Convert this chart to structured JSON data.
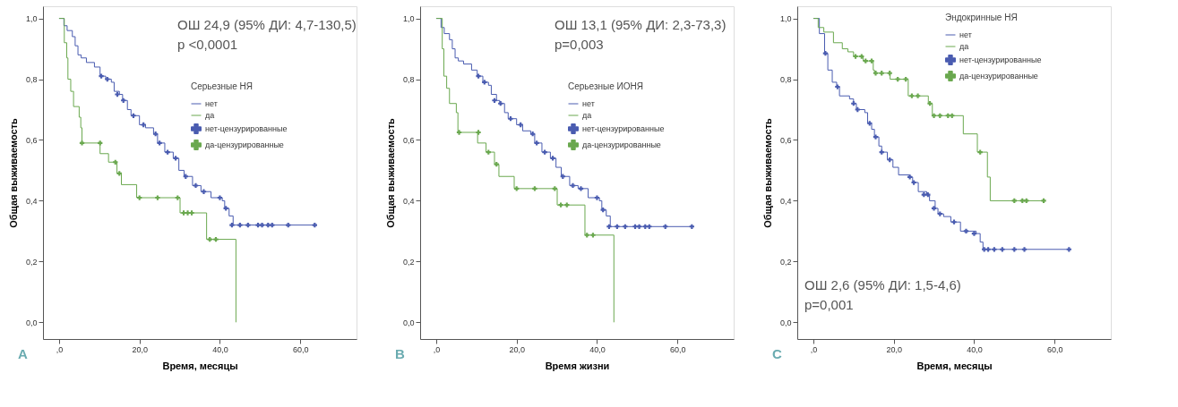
{
  "chart_data": [
    {
      "type": "step",
      "xlabel": "Время, месяцы",
      "ylabel": "Общая выживаемость",
      "legend_title": "Серьезные НЯ",
      "legend": "top right",
      "grid": false,
      "xlim": [
        -4,
        74
      ],
      "ylim": [
        -0.055,
        1.04
      ],
      "xticks": [
        {
          "value": 0,
          "label": ",0"
        },
        {
          "value": 20,
          "label": "20,0"
        },
        {
          "value": 40,
          "label": "40,0"
        },
        {
          "value": 60,
          "label": "60,0"
        }
      ],
      "yticks": [
        {
          "value": 0,
          "label": "0,0"
        },
        {
          "value": 0.2,
          "label": "0,2"
        },
        {
          "value": 0.4,
          "label": "0,4"
        },
        {
          "value": 0.6,
          "label": "0,6"
        },
        {
          "value": 0.8,
          "label": "0,8"
        },
        {
          "value": 1.0,
          "label": "1,0"
        }
      ],
      "annotations": [
        "ОШ 24,9 (95% ДИ: 4,7-130,5)",
        "p <0,0001",
        "A"
      ],
      "series": [
        {
          "name": "нет",
          "color": "#4a5cb0",
          "x": [
            0,
            1.2,
            2,
            3.3,
            4,
            4.7,
            5.5,
            6.8,
            8.8,
            10.2,
            11.6,
            13,
            13.7,
            15,
            15.8,
            17,
            17.9,
            20,
            21.5,
            23.5,
            24.5,
            26.3,
            28.4,
            29.8,
            31.1,
            33.2,
            35.3,
            37.8,
            40.6,
            41.2,
            42.3,
            43.3,
            63.6
          ],
          "values": [
            1.0,
            0.976,
            0.96,
            0.94,
            0.91,
            0.88,
            0.87,
            0.855,
            0.84,
            0.81,
            0.8,
            0.79,
            0.76,
            0.75,
            0.73,
            0.7,
            0.68,
            0.65,
            0.64,
            0.62,
            0.59,
            0.56,
            0.54,
            0.5,
            0.48,
            0.45,
            0.43,
            0.41,
            0.4,
            0.375,
            0.35,
            0.32,
            0.32
          ]
        },
        {
          "name": "да",
          "color": "#6aa84f",
          "x": [
            0,
            1.3,
            1.9,
            2.2,
            2.9,
            3.6,
            5.0,
            5.4,
            5.7,
            10.2,
            12.3,
            14.4,
            15.5,
            19.3,
            30.1,
            36.7,
            44
          ],
          "values": [
            1.0,
            0.92,
            0.87,
            0.8,
            0.76,
            0.71,
            0.675,
            0.64,
            0.59,
            0.555,
            0.527,
            0.49,
            0.453,
            0.41,
            0.36,
            0.273,
            0
          ]
        },
        {
          "name": "нет-цензурированные",
          "type": "scatter",
          "marker": "cross",
          "color": "#4a5cb0",
          "x": [
            10.5,
            12,
            14.5,
            16,
            18.5,
            21,
            24,
            25,
            27,
            29,
            31.5,
            34,
            36,
            40,
            41.5,
            43,
            45,
            47,
            49.5,
            50.5,
            52,
            53,
            57,
            63.6
          ],
          "values": [
            0.81,
            0.8,
            0.75,
            0.73,
            0.68,
            0.65,
            0.62,
            0.59,
            0.56,
            0.54,
            0.48,
            0.45,
            0.43,
            0.41,
            0.375,
            0.32,
            0.32,
            0.32,
            0.32,
            0.32,
            0.32,
            0.32,
            0.32,
            0.32
          ]
        },
        {
          "name": "да-цензурированные",
          "type": "scatter",
          "marker": "cross",
          "color": "#6aa84f",
          "x": [
            5.7,
            10.2,
            14,
            15,
            20,
            24.5,
            29.5,
            31,
            32,
            33,
            37.5,
            39
          ],
          "values": [
            0.59,
            0.59,
            0.527,
            0.49,
            0.41,
            0.41,
            0.41,
            0.36,
            0.36,
            0.36,
            0.273,
            0.273
          ]
        }
      ]
    },
    {
      "type": "step",
      "xlabel": "Время жизни",
      "ylabel": "Общая выживаемость",
      "legend_title": "Серьезные ИОНЯ",
      "legend": "top right",
      "grid": false,
      "xlim": [
        -4,
        74
      ],
      "ylim": [
        -0.055,
        1.04
      ],
      "xticks": [
        {
          "value": 0,
          "label": ",0"
        },
        {
          "value": 20,
          "label": "20,0"
        },
        {
          "value": 40,
          "label": "40,0"
        },
        {
          "value": 60,
          "label": "60,0"
        }
      ],
      "yticks": [
        {
          "value": 0,
          "label": "0,0"
        },
        {
          "value": 0.2,
          "label": "0,2"
        },
        {
          "value": 0.4,
          "label": "0,4"
        },
        {
          "value": 0.6,
          "label": "0,6"
        },
        {
          "value": 0.8,
          "label": "0,8"
        },
        {
          "value": 1.0,
          "label": "1,0"
        }
      ],
      "annotations": [
        "ОШ 13,1 (95% ДИ: 2,3-73,3)",
        "p=0,003",
        "B"
      ],
      "series": [
        {
          "name": "нет",
          "color": "#4a5cb0",
          "x": [
            0,
            1.2,
            2,
            3.3,
            4,
            4.7,
            5.5,
            6.8,
            8.8,
            10.2,
            11.6,
            13,
            13.7,
            15,
            15.8,
            17,
            17.9,
            20,
            21.5,
            23.5,
            24.5,
            26.3,
            28.4,
            29.8,
            31.1,
            33.2,
            35.3,
            37.8,
            40.6,
            41.2,
            42.3,
            43.3,
            63.6
          ],
          "values": [
            1.0,
            0.97,
            0.95,
            0.93,
            0.9,
            0.87,
            0.86,
            0.85,
            0.83,
            0.81,
            0.79,
            0.78,
            0.75,
            0.73,
            0.72,
            0.69,
            0.67,
            0.65,
            0.63,
            0.62,
            0.59,
            0.56,
            0.54,
            0.51,
            0.48,
            0.45,
            0.44,
            0.41,
            0.4,
            0.37,
            0.35,
            0.315,
            0.315
          ]
        },
        {
          "name": "да",
          "color": "#6aa84f",
          "x": [
            0,
            1.5,
            1.9,
            2.6,
            3.3,
            5.0,
            5.4,
            10.3,
            12.4,
            14.5,
            15.6,
            19.4,
            30.1,
            37,
            44.2
          ],
          "values": [
            1.0,
            0.9,
            0.81,
            0.77,
            0.72,
            0.69,
            0.625,
            0.59,
            0.56,
            0.52,
            0.48,
            0.44,
            0.386,
            0.287,
            0
          ]
        },
        {
          "name": "нет-цензурированные",
          "type": "scatter",
          "marker": "cross",
          "color": "#4a5cb0",
          "x": [
            10.5,
            12,
            14.5,
            16,
            18.5,
            21,
            24,
            25,
            27,
            29,
            31.5,
            34,
            36,
            40,
            41.5,
            43,
            45,
            47,
            49.5,
            50.5,
            52,
            53,
            57,
            63.6
          ],
          "values": [
            0.81,
            0.79,
            0.73,
            0.72,
            0.67,
            0.65,
            0.62,
            0.59,
            0.56,
            0.54,
            0.48,
            0.45,
            0.44,
            0.41,
            0.37,
            0.315,
            0.315,
            0.315,
            0.315,
            0.315,
            0.315,
            0.315,
            0.315,
            0.315
          ]
        },
        {
          "name": "да-цензурированные",
          "type": "scatter",
          "marker": "cross",
          "color": "#6aa84f",
          "x": [
            5.7,
            10.5,
            13,
            15,
            20,
            24.5,
            29.5,
            31,
            32.5,
            37.5,
            39
          ],
          "values": [
            0.625,
            0.625,
            0.56,
            0.52,
            0.44,
            0.44,
            0.44,
            0.386,
            0.386,
            0.287,
            0.287
          ]
        }
      ]
    },
    {
      "type": "step",
      "xlabel": "Время, месяцы",
      "ylabel": "Общая выживаемость",
      "legend_title": "Эндокринные НЯ",
      "legend": "top right",
      "grid": false,
      "xlim": [
        -4,
        74
      ],
      "ylim": [
        -0.055,
        1.04
      ],
      "xticks": [
        {
          "value": 0,
          "label": ",0"
        },
        {
          "value": 20,
          "label": "20,0"
        },
        {
          "value": 40,
          "label": "40,0"
        },
        {
          "value": 60,
          "label": "60,0"
        }
      ],
      "yticks": [
        {
          "value": 0,
          "label": "0,0"
        },
        {
          "value": 0.2,
          "label": "0,2"
        },
        {
          "value": 0.4,
          "label": "0,4"
        },
        {
          "value": 0.6,
          "label": "0,6"
        },
        {
          "value": 0.8,
          "label": "0,8"
        },
        {
          "value": 1.0,
          "label": "1,0"
        }
      ],
      "annotations": [
        "ОШ 2,6 (95% ДИ: 1,5-4,6)",
        "p=0,001",
        "C"
      ],
      "series": [
        {
          "name": "нет",
          "color": "#4a5cb0",
          "x": [
            0,
            0.5,
            1.5,
            2.8,
            3.6,
            4.7,
            5.8,
            6.5,
            9,
            10,
            10.7,
            12.8,
            13.5,
            14.5,
            15.2,
            16.3,
            17,
            18.4,
            19.8,
            21.2,
            24,
            24.7,
            26.1,
            28.2,
            28.9,
            30.3,
            31,
            32.4,
            34.2,
            36.6,
            40.5,
            41.5,
            42.2,
            63.6
          ],
          "values": [
            1.0,
            1.0,
            0.95,
            0.885,
            0.83,
            0.79,
            0.775,
            0.745,
            0.735,
            0.72,
            0.7,
            0.69,
            0.655,
            0.635,
            0.61,
            0.58,
            0.56,
            0.535,
            0.51,
            0.485,
            0.478,
            0.46,
            0.43,
            0.42,
            0.4,
            0.375,
            0.357,
            0.348,
            0.33,
            0.3,
            0.292,
            0.264,
            0.24,
            0.24
          ]
        },
        {
          "name": "да",
          "color": "#6aa84f",
          "x": [
            0,
            1.2,
            2.6,
            5,
            7.2,
            8.6,
            10,
            12.4,
            14.9,
            15.2,
            19.1,
            23.6,
            28.6,
            29.6,
            37.3,
            40.8,
            43.3,
            44,
            57.3
          ],
          "values": [
            1.0,
            0.97,
            0.955,
            0.92,
            0.9,
            0.89,
            0.875,
            0.86,
            0.83,
            0.82,
            0.8,
            0.745,
            0.72,
            0.68,
            0.62,
            0.56,
            0.478,
            0.4,
            0.4
          ]
        },
        {
          "name": "нет-цензурированные",
          "type": "scatter",
          "marker": "cross",
          "color": "#4a5cb0",
          "x": [
            3,
            6,
            10,
            11,
            14,
            15.5,
            17,
            19,
            24,
            25,
            27.5,
            28.5,
            30,
            31.5,
            35,
            38,
            40,
            42.5,
            43.5,
            45,
            47,
            50,
            52.5,
            63.6
          ],
          "values": [
            0.885,
            0.775,
            0.72,
            0.7,
            0.655,
            0.61,
            0.56,
            0.535,
            0.478,
            0.46,
            0.42,
            0.42,
            0.375,
            0.357,
            0.33,
            0.3,
            0.292,
            0.24,
            0.24,
            0.24,
            0.24,
            0.24,
            0.24,
            0.24
          ]
        },
        {
          "name": "да-цензурированные",
          "type": "scatter",
          "marker": "cross",
          "color": "#6aa84f",
          "x": [
            10.5,
            12,
            13,
            14.5,
            15.5,
            17,
            19,
            21,
            23,
            24.5,
            26,
            29,
            30,
            31.5,
            33.5,
            34.5,
            41.5,
            50,
            52,
            53,
            57.3
          ],
          "values": [
            0.875,
            0.875,
            0.86,
            0.86,
            0.82,
            0.82,
            0.82,
            0.8,
            0.8,
            0.745,
            0.745,
            0.72,
            0.68,
            0.68,
            0.68,
            0.68,
            0.56,
            0.4,
            0.4,
            0.4,
            0.4
          ]
        }
      ]
    }
  ]
}
